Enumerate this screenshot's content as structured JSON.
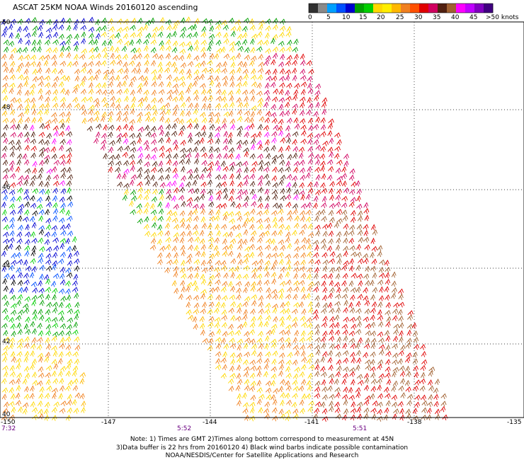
{
  "title": "ASCAT 25KM NOAA Winds 20160120 ascending",
  "colorbar": {
    "colors": [
      "#303030",
      "#8a8a8a",
      "#00a0ff",
      "#0050ff",
      "#0000d0",
      "#00a000",
      "#00d000",
      "#ffd800",
      "#ffee00",
      "#ffb800",
      "#f08020",
      "#ff5000",
      "#e00000",
      "#d00060",
      "#502010",
      "#a06030",
      "#ff00ff",
      "#c000ff",
      "#8000c0",
      "#400080"
    ],
    "labels": [
      "0",
      "5",
      "10",
      "15",
      "20",
      "25",
      "30",
      "35",
      "40",
      "45",
      ">50 knots"
    ]
  },
  "lat_labels": [
    "50",
    "48",
    "46",
    "44",
    "42",
    "40"
  ],
  "lon_labels": [
    "-150",
    "-147",
    "-144",
    "-141",
    "-138",
    "-135"
  ],
  "times": [
    "7:32",
    "5:52",
    "5:51"
  ],
  "notes": [
    "Note: 1) Times are GMT 2)Times along bottom correspond to measurement at 45N",
    "3)Data buffer is 22 hrs from 20160120 4) Black wind barbs indicate possible contamination",
    "NOAA/NESDIS/Center for Satellite Applications and Research"
  ]
}
